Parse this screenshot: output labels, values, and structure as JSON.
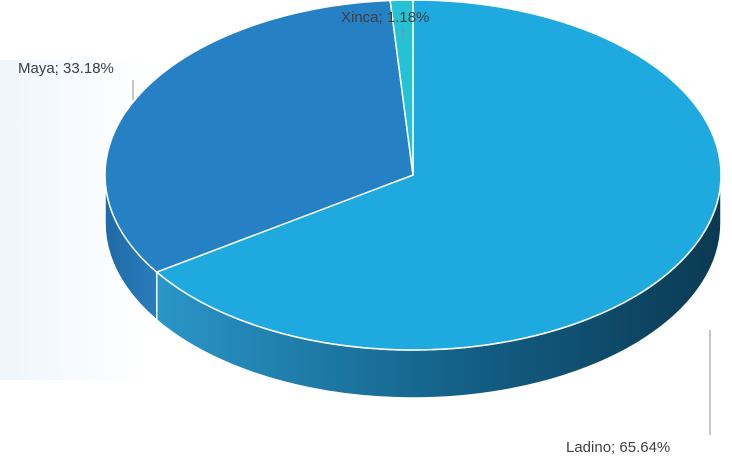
{
  "chart_data": {
    "type": "pie",
    "style": "3d",
    "title": "",
    "slices": [
      {
        "name": "Ladino",
        "value": 65.64,
        "label": "Ladino; 65.64%",
        "color": "#1ea9df",
        "side_color": "#0e4f6e"
      },
      {
        "name": "Maya",
        "value": 33.18,
        "label": "Maya; 33.18%",
        "color": "#2680c4",
        "side_color": "#1c5e93"
      },
      {
        "name": "Xinca",
        "value": 1.18,
        "label": "Xinca; 1.18%",
        "color": "#25c2d6",
        "side_color": "#14818f"
      }
    ]
  }
}
